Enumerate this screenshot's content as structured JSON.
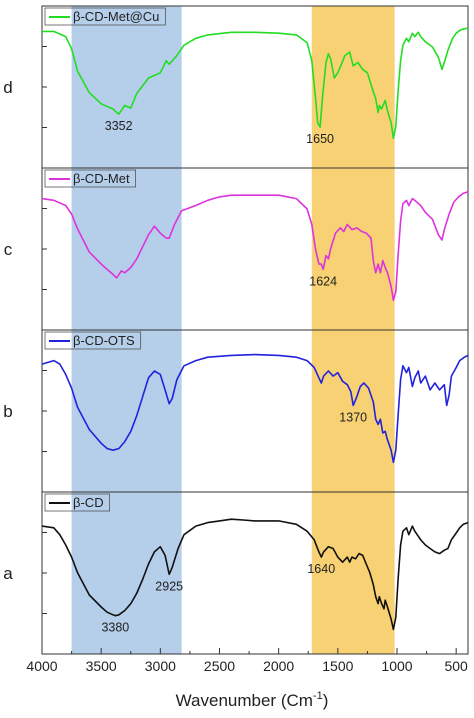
{
  "chart_data": {
    "type": "line",
    "title": "",
    "xlabel_main": "Wavenumber (Cm",
    "xlabel_sup": "-1",
    "xlim": [
      4000,
      400
    ],
    "x_reversed": true,
    "x_ticks": [
      4000,
      3500,
      3000,
      2500,
      2000,
      1500,
      1000,
      500
    ],
    "x_tick_labels": [
      "4000",
      "3500",
      "3000",
      "2500",
      "2000",
      "1500",
      "1000",
      "500"
    ],
    "bands": [
      {
        "from": 3750,
        "to": 2820,
        "color": "#a8c6e6"
      },
      {
        "from": 1720,
        "to": 1020,
        "color": "#f6c95a"
      }
    ],
    "panels": [
      {
        "id": "d",
        "panel_label": "d",
        "legend": "β-CD-Met@Cu",
        "color": "#22dd22",
        "points": [
          [
            4000,
            0.04
          ],
          [
            3900,
            0.04
          ],
          [
            3800,
            0.1
          ],
          [
            3750,
            0.24
          ],
          [
            3700,
            0.5
          ],
          [
            3600,
            0.75
          ],
          [
            3500,
            0.88
          ],
          [
            3400,
            0.94
          ],
          [
            3352,
            1.0
          ],
          [
            3300,
            0.9
          ],
          [
            3250,
            0.93
          ],
          [
            3200,
            0.76
          ],
          [
            3100,
            0.58
          ],
          [
            3000,
            0.52
          ],
          [
            2950,
            0.38
          ],
          [
            2925,
            0.42
          ],
          [
            2860,
            0.32
          ],
          [
            2800,
            0.2
          ],
          [
            2700,
            0.12
          ],
          [
            2600,
            0.08
          ],
          [
            2400,
            0.05
          ],
          [
            2200,
            0.05
          ],
          [
            2000,
            0.06
          ],
          [
            1850,
            0.08
          ],
          [
            1760,
            0.17
          ],
          [
            1720,
            0.38
          ],
          [
            1690,
            0.8
          ],
          [
            1670,
            1.1
          ],
          [
            1650,
            1.15
          ],
          [
            1630,
            0.82
          ],
          [
            1600,
            0.4
          ],
          [
            1580,
            0.3
          ],
          [
            1560,
            0.36
          ],
          [
            1530,
            0.58
          ],
          [
            1500,
            0.52
          ],
          [
            1470,
            0.42
          ],
          [
            1440,
            0.32
          ],
          [
            1400,
            0.28
          ],
          [
            1370,
            0.44
          ],
          [
            1330,
            0.4
          ],
          [
            1290,
            0.48
          ],
          [
            1250,
            0.52
          ],
          [
            1200,
            0.74
          ],
          [
            1180,
            0.82
          ],
          [
            1160,
            0.98
          ],
          [
            1150,
            0.9
          ],
          [
            1130,
            0.94
          ],
          [
            1100,
            0.84
          ],
          [
            1080,
            0.96
          ],
          [
            1050,
            1.1
          ],
          [
            1030,
            1.28
          ],
          [
            1010,
            1.14
          ],
          [
            990,
            0.72
          ],
          [
            970,
            0.38
          ],
          [
            950,
            0.2
          ],
          [
            920,
            0.12
          ],
          [
            900,
            0.16
          ],
          [
            870,
            0.06
          ],
          [
            850,
            0.1
          ],
          [
            820,
            0.05
          ],
          [
            800,
            0.1
          ],
          [
            760,
            0.16
          ],
          [
            700,
            0.22
          ],
          [
            650,
            0.34
          ],
          [
            620,
            0.48
          ],
          [
            600,
            0.4
          ],
          [
            570,
            0.26
          ],
          [
            530,
            0.12
          ],
          [
            500,
            0.06
          ],
          [
            460,
            0.02
          ],
          [
            400,
            0.0
          ]
        ],
        "annotations": [
          {
            "text": "3352",
            "x": 3352
          },
          {
            "text": "1650",
            "x": 1650
          }
        ]
      },
      {
        "id": "c",
        "panel_label": "c",
        "legend": "β-CD-Met",
        "color": "#dd33dd",
        "points": [
          [
            4000,
            0.1
          ],
          [
            3900,
            0.12
          ],
          [
            3800,
            0.18
          ],
          [
            3750,
            0.28
          ],
          [
            3700,
            0.45
          ],
          [
            3600,
            0.72
          ],
          [
            3500,
            0.86
          ],
          [
            3450,
            0.92
          ],
          [
            3400,
            0.98
          ],
          [
            3370,
            1.02
          ],
          [
            3330,
            0.94
          ],
          [
            3300,
            0.96
          ],
          [
            3250,
            0.9
          ],
          [
            3200,
            0.8
          ],
          [
            3100,
            0.52
          ],
          [
            3050,
            0.42
          ],
          [
            3000,
            0.5
          ],
          [
            2950,
            0.56
          ],
          [
            2925,
            0.56
          ],
          [
            2880,
            0.4
          ],
          [
            2820,
            0.24
          ],
          [
            2700,
            0.18
          ],
          [
            2600,
            0.12
          ],
          [
            2500,
            0.08
          ],
          [
            2400,
            0.06
          ],
          [
            2200,
            0.06
          ],
          [
            2000,
            0.06
          ],
          [
            1850,
            0.1
          ],
          [
            1760,
            0.22
          ],
          [
            1720,
            0.4
          ],
          [
            1690,
            0.68
          ],
          [
            1660,
            0.86
          ],
          [
            1640,
            0.86
          ],
          [
            1624,
            0.92
          ],
          [
            1600,
            0.76
          ],
          [
            1580,
            0.8
          ],
          [
            1560,
            0.68
          ],
          [
            1520,
            0.5
          ],
          [
            1480,
            0.44
          ],
          [
            1450,
            0.48
          ],
          [
            1420,
            0.4
          ],
          [
            1380,
            0.46
          ],
          [
            1340,
            0.44
          ],
          [
            1300,
            0.48
          ],
          [
            1260,
            0.5
          ],
          [
            1220,
            0.56
          ],
          [
            1200,
            0.82
          ],
          [
            1180,
            0.96
          ],
          [
            1160,
            0.86
          ],
          [
            1140,
            0.96
          ],
          [
            1120,
            0.82
          ],
          [
            1100,
            0.9
          ],
          [
            1080,
            0.96
          ],
          [
            1050,
            1.12
          ],
          [
            1030,
            1.28
          ],
          [
            1010,
            1.18
          ],
          [
            990,
            0.74
          ],
          [
            970,
            0.36
          ],
          [
            950,
            0.16
          ],
          [
            920,
            0.12
          ],
          [
            900,
            0.18
          ],
          [
            870,
            0.1
          ],
          [
            850,
            0.12
          ],
          [
            800,
            0.18
          ],
          [
            760,
            0.26
          ],
          [
            700,
            0.34
          ],
          [
            650,
            0.52
          ],
          [
            620,
            0.58
          ],
          [
            600,
            0.46
          ],
          [
            560,
            0.28
          ],
          [
            520,
            0.14
          ],
          [
            480,
            0.08
          ],
          [
            440,
            0.04
          ],
          [
            400,
            0.02
          ]
        ],
        "annotations": [
          {
            "text": "1624",
            "x": 1624
          }
        ]
      },
      {
        "id": "b",
        "panel_label": "b",
        "legend": "β-CD-OTS",
        "color": "#2222dd",
        "points": [
          [
            4000,
            0.14
          ],
          [
            3900,
            0.1
          ],
          [
            3850,
            0.14
          ],
          [
            3800,
            0.26
          ],
          [
            3750,
            0.42
          ],
          [
            3700,
            0.64
          ],
          [
            3600,
            0.9
          ],
          [
            3500,
            1.06
          ],
          [
            3450,
            1.12
          ],
          [
            3400,
            1.14
          ],
          [
            3350,
            1.12
          ],
          [
            3300,
            1.04
          ],
          [
            3250,
            0.92
          ],
          [
            3200,
            0.74
          ],
          [
            3150,
            0.52
          ],
          [
            3100,
            0.3
          ],
          [
            3050,
            0.22
          ],
          [
            3000,
            0.26
          ],
          [
            2960,
            0.44
          ],
          [
            2925,
            0.6
          ],
          [
            2900,
            0.54
          ],
          [
            2860,
            0.32
          ],
          [
            2800,
            0.16
          ],
          [
            2700,
            0.1
          ],
          [
            2600,
            0.06
          ],
          [
            2400,
            0.04
          ],
          [
            2200,
            0.03
          ],
          [
            2000,
            0.04
          ],
          [
            1850,
            0.06
          ],
          [
            1760,
            0.1
          ],
          [
            1700,
            0.18
          ],
          [
            1660,
            0.3
          ],
          [
            1640,
            0.36
          ],
          [
            1620,
            0.28
          ],
          [
            1580,
            0.22
          ],
          [
            1540,
            0.28
          ],
          [
            1500,
            0.24
          ],
          [
            1460,
            0.34
          ],
          [
            1420,
            0.38
          ],
          [
            1390,
            0.46
          ],
          [
            1370,
            0.62
          ],
          [
            1340,
            0.52
          ],
          [
            1310,
            0.4
          ],
          [
            1280,
            0.36
          ],
          [
            1240,
            0.42
          ],
          [
            1200,
            0.58
          ],
          [
            1180,
            0.78
          ],
          [
            1160,
            0.84
          ],
          [
            1140,
            0.78
          ],
          [
            1120,
            0.94
          ],
          [
            1100,
            0.92
          ],
          [
            1080,
            1.02
          ],
          [
            1050,
            1.14
          ],
          [
            1030,
            1.28
          ],
          [
            1010,
            1.14
          ],
          [
            990,
            0.72
          ],
          [
            970,
            0.32
          ],
          [
            950,
            0.16
          ],
          [
            920,
            0.24
          ],
          [
            900,
            0.18
          ],
          [
            870,
            0.4
          ],
          [
            850,
            0.3
          ],
          [
            820,
            0.22
          ],
          [
            800,
            0.36
          ],
          [
            760,
            0.28
          ],
          [
            720,
            0.44
          ],
          [
            680,
            0.36
          ],
          [
            640,
            0.44
          ],
          [
            600,
            0.38
          ],
          [
            580,
            0.62
          ],
          [
            560,
            0.5
          ],
          [
            540,
            0.28
          ],
          [
            500,
            0.18
          ],
          [
            470,
            0.1
          ],
          [
            430,
            0.06
          ],
          [
            400,
            0.04
          ]
        ],
        "annotations": [
          {
            "text": "1370",
            "x": 1370
          }
        ]
      },
      {
        "id": "a",
        "panel_label": "a",
        "legend": "β-CD",
        "color": "#111111",
        "points": [
          [
            4000,
            0.14
          ],
          [
            3900,
            0.16
          ],
          [
            3850,
            0.24
          ],
          [
            3800,
            0.36
          ],
          [
            3750,
            0.5
          ],
          [
            3700,
            0.68
          ],
          [
            3600,
            0.94
          ],
          [
            3500,
            1.08
          ],
          [
            3450,
            1.14
          ],
          [
            3400,
            1.17
          ],
          [
            3380,
            1.18
          ],
          [
            3350,
            1.17
          ],
          [
            3300,
            1.12
          ],
          [
            3250,
            1.04
          ],
          [
            3200,
            0.92
          ],
          [
            3150,
            0.76
          ],
          [
            3100,
            0.58
          ],
          [
            3050,
            0.44
          ],
          [
            3000,
            0.38
          ],
          [
            2960,
            0.48
          ],
          [
            2925,
            0.7
          ],
          [
            2900,
            0.62
          ],
          [
            2850,
            0.4
          ],
          [
            2800,
            0.24
          ],
          [
            2700,
            0.14
          ],
          [
            2600,
            0.1
          ],
          [
            2500,
            0.08
          ],
          [
            2400,
            0.06
          ],
          [
            2300,
            0.07
          ],
          [
            2200,
            0.08
          ],
          [
            2000,
            0.08
          ],
          [
            1850,
            0.12
          ],
          [
            1760,
            0.2
          ],
          [
            1700,
            0.3
          ],
          [
            1660,
            0.44
          ],
          [
            1640,
            0.5
          ],
          [
            1620,
            0.44
          ],
          [
            1580,
            0.38
          ],
          [
            1540,
            0.4
          ],
          [
            1500,
            0.5
          ],
          [
            1460,
            0.56
          ],
          [
            1420,
            0.5
          ],
          [
            1400,
            0.56
          ],
          [
            1380,
            0.5
          ],
          [
            1350,
            0.52
          ],
          [
            1320,
            0.46
          ],
          [
            1290,
            0.48
          ],
          [
            1260,
            0.58
          ],
          [
            1230,
            0.68
          ],
          [
            1200,
            0.82
          ],
          [
            1180,
            0.96
          ],
          [
            1160,
            1.04
          ],
          [
            1150,
            0.96
          ],
          [
            1130,
            1.04
          ],
          [
            1110,
            1.1
          ],
          [
            1100,
            1.0
          ],
          [
            1080,
            1.08
          ],
          [
            1050,
            1.22
          ],
          [
            1030,
            1.34
          ],
          [
            1010,
            1.2
          ],
          [
            990,
            0.74
          ],
          [
            970,
            0.36
          ],
          [
            950,
            0.2
          ],
          [
            920,
            0.16
          ],
          [
            900,
            0.24
          ],
          [
            870,
            0.14
          ],
          [
            850,
            0.2
          ],
          [
            800,
            0.3
          ],
          [
            760,
            0.36
          ],
          [
            720,
            0.4
          ],
          [
            680,
            0.44
          ],
          [
            640,
            0.46
          ],
          [
            600,
            0.42
          ],
          [
            570,
            0.4
          ],
          [
            540,
            0.3
          ],
          [
            500,
            0.22
          ],
          [
            470,
            0.16
          ],
          [
            440,
            0.12
          ],
          [
            400,
            0.1
          ]
        ],
        "annotations": [
          {
            "text": "3380",
            "x": 3380
          },
          {
            "text": "2925",
            "x": 2925
          },
          {
            "text": "1640",
            "x": 1640
          }
        ]
      }
    ]
  }
}
